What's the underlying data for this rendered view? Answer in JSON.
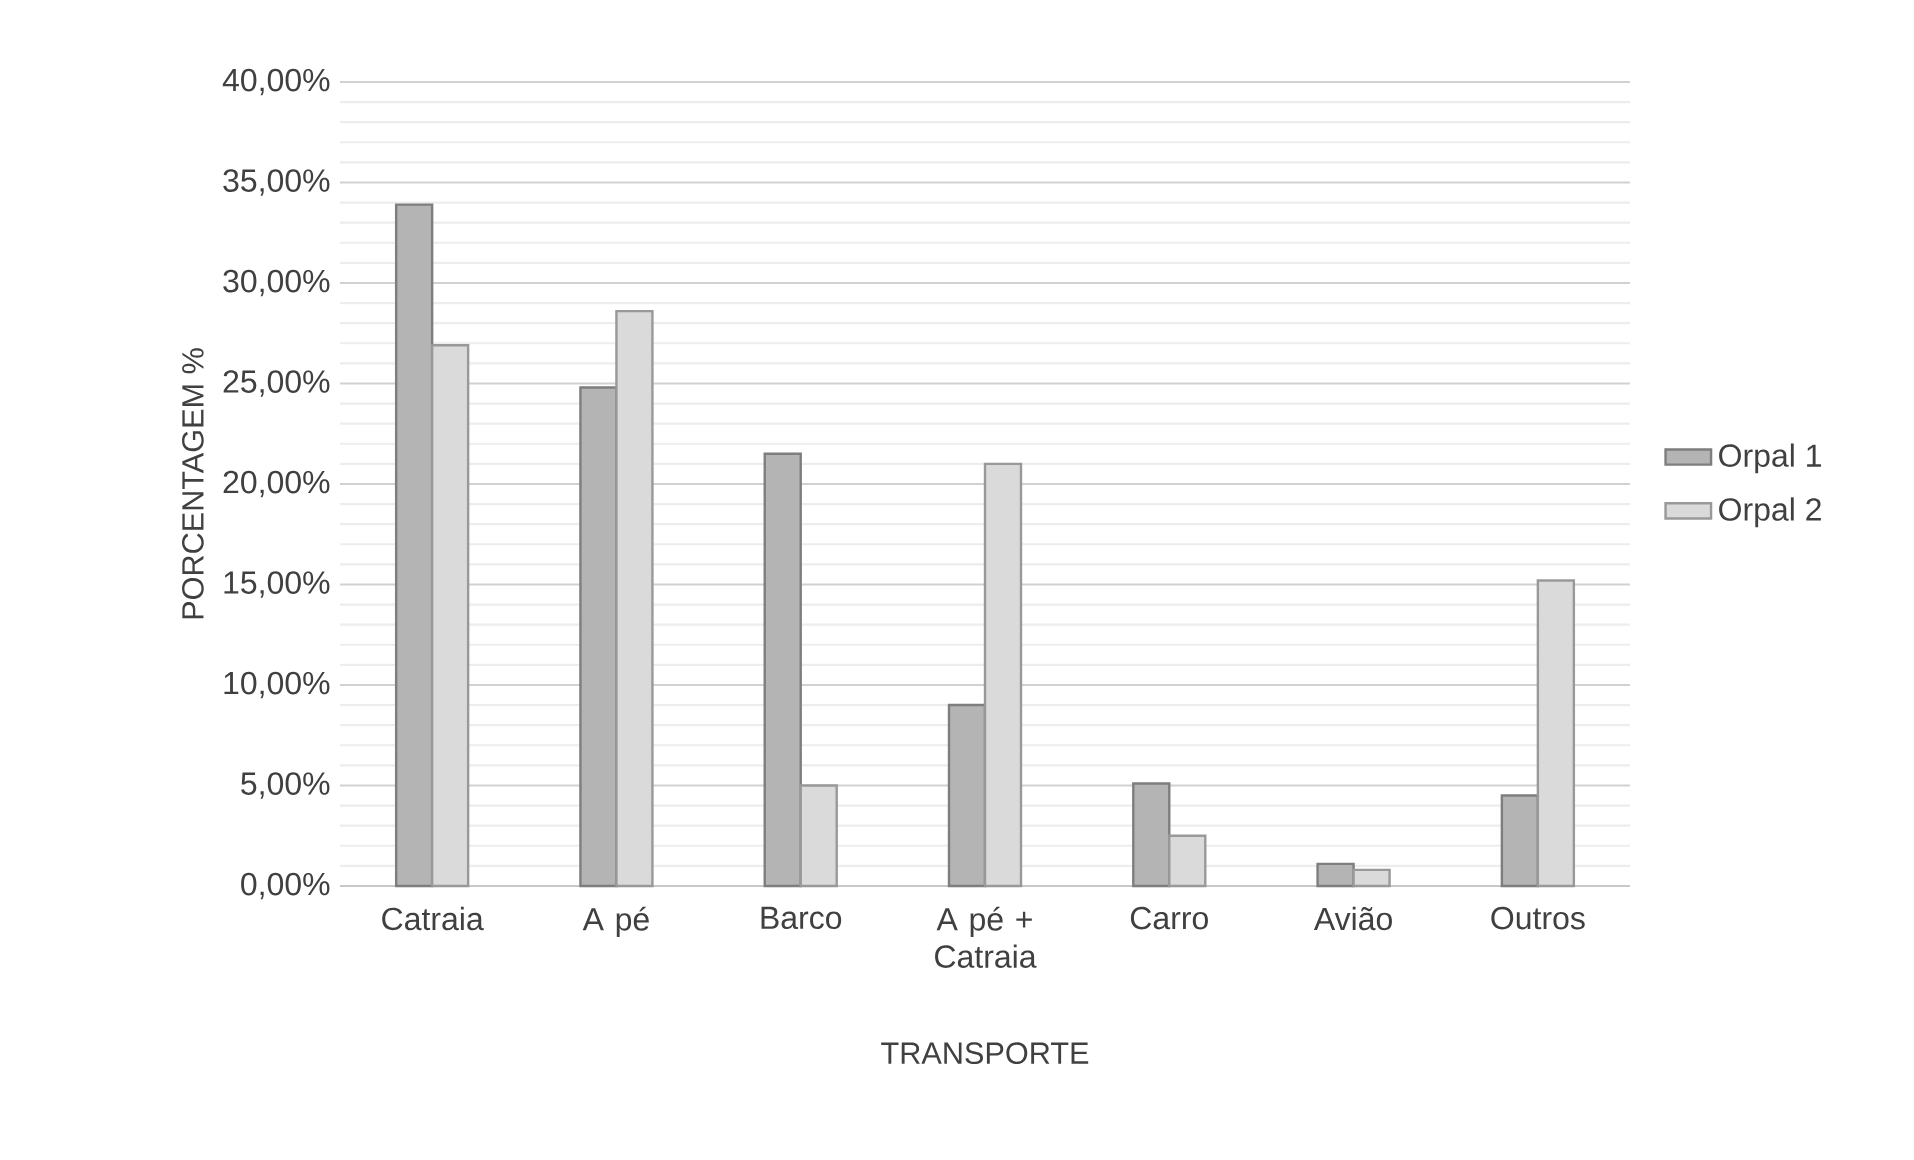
{
  "chart_data": {
    "type": "bar",
    "xlabel": "TRANSPORTE",
    "ylabel": "PORCENTAGEM %",
    "categories": [
      "Catraia",
      "A pé",
      "Barco",
      "A pé + Catraia",
      "Carro",
      "Avião",
      "Outros"
    ],
    "series": [
      {
        "name": "Orpal 1",
        "color": "#b4b4b4",
        "values": [
          33.9,
          24.8,
          21.5,
          9.0,
          5.1,
          1.1,
          4.5
        ]
      },
      {
        "name": "Orpal 2",
        "color": "#dadada",
        "values": [
          26.9,
          28.6,
          5.0,
          21.0,
          2.5,
          0.8,
          15.2
        ]
      }
    ],
    "ylim": [
      0,
      40
    ],
    "yticks": [
      {
        "value": 0,
        "label": "0,00%"
      },
      {
        "value": 5,
        "label": "5,00%"
      },
      {
        "value": 10,
        "label": "10,00%"
      },
      {
        "value": 15,
        "label": "15,00%"
      },
      {
        "value": 20,
        "label": "20,00%"
      },
      {
        "value": 25,
        "label": "25,00%"
      },
      {
        "value": 30,
        "label": "30,00%"
      },
      {
        "value": 35,
        "label": "35,00%"
      },
      {
        "value": 40,
        "label": "40,00%"
      }
    ],
    "grid": "y",
    "legend": "right"
  }
}
